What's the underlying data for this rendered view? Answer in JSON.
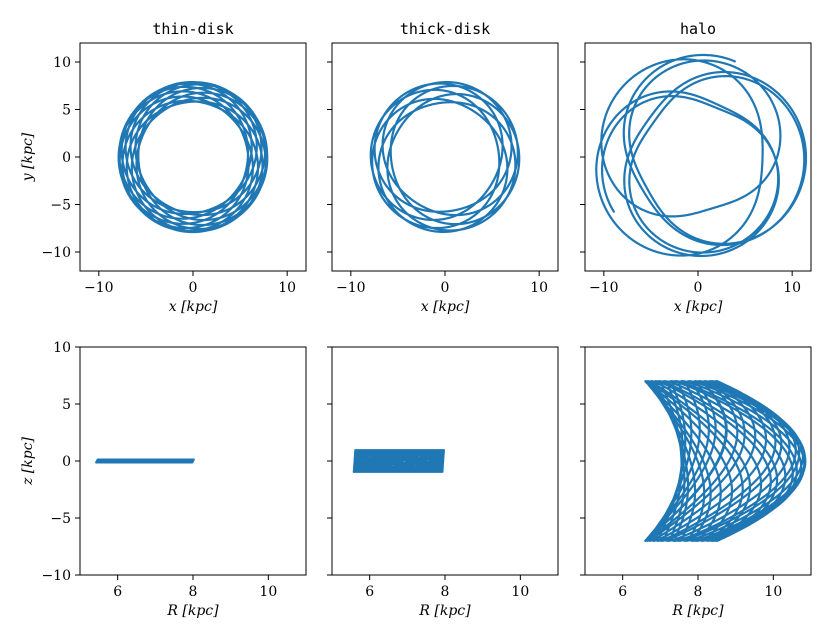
{
  "colors": {
    "series": "#1f77b4"
  },
  "chart_data": [
    {
      "type": "line",
      "title": "thin-disk",
      "xlabel": "x [kpc]",
      "ylabel": "y [kpc]",
      "xlim": [
        -12,
        12
      ],
      "ylim": [
        -12,
        12
      ],
      "xticks": [
        -10,
        0,
        10
      ],
      "xtick_labels": [
        "−10",
        "0",
        "10"
      ],
      "yticks": [
        -10,
        -5,
        0,
        5,
        10
      ],
      "ytick_labels": [
        "−10",
        "−5",
        "0",
        "5",
        "10"
      ],
      "orbit": {
        "rmin": 5.8,
        "rmax": 7.9,
        "rotations": 12,
        "loops": 13,
        "phase": 0.3,
        "ecc_skew": 0
      }
    },
    {
      "type": "line",
      "title": "thick-disk",
      "xlabel": "x [kpc]",
      "ylabel": "",
      "xlim": [
        -12,
        12
      ],
      "ylim": [
        -12,
        12
      ],
      "xticks": [
        -10,
        0,
        10
      ],
      "xtick_labels": [
        "−10",
        "0",
        "10"
      ],
      "yticks": [
        -10,
        -5,
        0,
        5,
        10
      ],
      "ytick_labels": [
        "",
        "",
        "",
        "",
        ""
      ],
      "orbit": {
        "rmin": 5.7,
        "rmax": 7.9,
        "rotations": 7,
        "loops": 8,
        "phase": 0.6,
        "ecc_skew": 0
      }
    },
    {
      "type": "line",
      "title": "halo",
      "xlabel": "x [kpc]",
      "ylabel": "",
      "xlim": [
        -12,
        12
      ],
      "ylim": [
        -12,
        12
      ],
      "xticks": [
        -10,
        0,
        10
      ],
      "xtick_labels": [
        "−10",
        "0",
        "10"
      ],
      "yticks": [
        -10,
        -5,
        0,
        5,
        10
      ],
      "ytick_labels": [
        "",
        "",
        "",
        "",
        ""
      ],
      "orbit": {
        "rmin": 6.2,
        "rmax": 10.8,
        "rotations": 6.4,
        "loops": 8,
        "phase": 1.2,
        "ecc_skew": 0.08
      }
    },
    {
      "type": "line",
      "title": "",
      "xlabel": "R [kpc]",
      "ylabel": "z [kpc]",
      "xlim": [
        5,
        11
      ],
      "ylim": [
        -10,
        10
      ],
      "xticks": [
        6,
        8,
        10
      ],
      "xtick_labels": [
        "6",
        "8",
        "10"
      ],
      "yticks": [
        -10,
        -5,
        0,
        5,
        10
      ],
      "ytick_labels": [
        "−10",
        "−5",
        "0",
        "5",
        "10"
      ],
      "meridional": {
        "rmin": 5.45,
        "rmax": 8.0,
        "zamp": 0.12,
        "bend": 0,
        "loops": 20
      }
    },
    {
      "type": "line",
      "title": "",
      "xlabel": "R [kpc]",
      "ylabel": "",
      "xlim": [
        5,
        11
      ],
      "ylim": [
        -10,
        10
      ],
      "xticks": [
        6,
        8,
        10
      ],
      "xtick_labels": [
        "6",
        "8",
        "10"
      ],
      "yticks": [
        -10,
        -5,
        0,
        5,
        10
      ],
      "ytick_labels": [
        "",
        "",
        "",
        "",
        ""
      ],
      "meridional": {
        "rmin": 5.6,
        "rmax": 7.95,
        "zamp": 0.95,
        "bend": 0,
        "loops": 20
      }
    },
    {
      "type": "line",
      "title": "",
      "xlabel": "R [kpc]",
      "ylabel": "",
      "xlim": [
        5,
        11
      ],
      "ylim": [
        -10,
        10
      ],
      "xticks": [
        6,
        8,
        10
      ],
      "xtick_labels": [
        "6",
        "8",
        "10"
      ],
      "yticks": [
        -10,
        -5,
        0,
        5,
        10
      ],
      "ytick_labels": [
        "",
        "",
        "",
        "",
        ""
      ],
      "meridional": {
        "rmin": 6.25,
        "rmax": 10.85,
        "zamp": 7.0,
        "bend": 1,
        "loops": 14
      }
    }
  ]
}
